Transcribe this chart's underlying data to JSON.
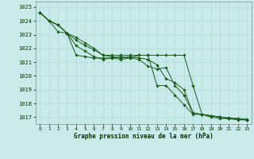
{
  "title": "Graphe pression niveau de la mer (hPa)",
  "background_color": "#c8eaea",
  "grid_color": "#b0d8d8",
  "line_color": "#1a5c1a",
  "marker_color": "#1a5c1a",
  "ylim": [
    1016.5,
    1025.4
  ],
  "xlim": [
    -0.5,
    23.5
  ],
  "yticks": [
    1017,
    1018,
    1019,
    1020,
    1021,
    1022,
    1023,
    1024,
    1025
  ],
  "xticks": [
    0,
    1,
    2,
    3,
    4,
    5,
    6,
    7,
    8,
    9,
    10,
    11,
    12,
    13,
    14,
    15,
    16,
    17,
    18,
    19,
    20,
    21,
    22,
    23
  ],
  "series": [
    [
      1024.6,
      1024.0,
      1023.7,
      1023.1,
      1022.6,
      1022.2,
      1021.9,
      1021.5,
      1021.4,
      1021.3,
      1021.4,
      1021.3,
      1021.2,
      1020.8,
      1019.8,
      1019.5,
      1019.0,
      1017.3,
      1017.2,
      1017.1,
      1017.0,
      1016.9,
      1016.85,
      1016.8
    ],
    [
      1024.6,
      1024.0,
      1023.7,
      1023.1,
      1022.8,
      1022.4,
      1022.0,
      1021.5,
      1021.5,
      1021.5,
      1021.5,
      1021.5,
      1021.5,
      1021.5,
      1021.5,
      1021.5,
      1021.5,
      1019.3,
      1017.2,
      1017.1,
      1017.0,
      1016.95,
      1016.9,
      1016.85
    ],
    [
      1024.6,
      1024.0,
      1023.2,
      1023.1,
      1022.2,
      1021.8,
      1021.4,
      1021.2,
      1021.3,
      1021.4,
      1021.3,
      1021.2,
      1020.7,
      1020.5,
      1020.6,
      1019.3,
      1018.6,
      1017.3,
      1017.2,
      1017.1,
      1017.0,
      1016.9,
      1016.85,
      1016.8
    ],
    [
      1024.6,
      1024.0,
      1023.7,
      1023.1,
      1021.5,
      1021.4,
      1021.3,
      1021.3,
      1021.3,
      1021.2,
      1021.3,
      1021.5,
      1021.5,
      1019.3,
      1019.3,
      1018.6,
      1017.9,
      1017.2,
      1017.2,
      1017.0,
      1016.9,
      1016.9,
      1016.8,
      1016.8
    ]
  ]
}
